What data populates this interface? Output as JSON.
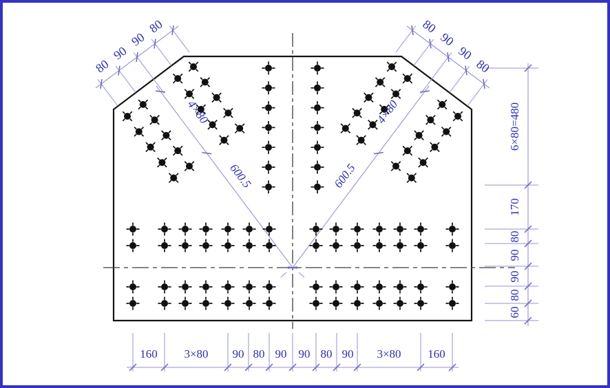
{
  "drawing": {
    "type": "gusset-plate-bolt-layout",
    "chains": {
      "top_left": [
        "80",
        "90",
        "90",
        "80"
      ],
      "top_right": [
        "80",
        "90",
        "90",
        "80"
      ],
      "right": [
        "6×80=480",
        "170",
        "80",
        "90",
        "90",
        "80",
        "60"
      ],
      "bottom": [
        "160",
        "3×80",
        "90",
        "80",
        "90",
        "90",
        "80",
        "90",
        "3×80",
        "160"
      ],
      "diag_left": {
        "rows": "4×80",
        "length": "600.5"
      },
      "diag_right": {
        "rows": "4×80",
        "length": "600.5"
      }
    },
    "bolt_counts": {
      "diagonal_groups": "2 groups × 20",
      "center_columns": "2 × 7",
      "bottom_rows": "4 × 14"
    },
    "colors": {
      "frame": "#3433c2",
      "outline": "#141414",
      "centerline": "#3c3c3c",
      "dim_line": "#9593cf",
      "dim_tick": "#6e6cc0",
      "dim_text": "#2d2fae"
    }
  }
}
